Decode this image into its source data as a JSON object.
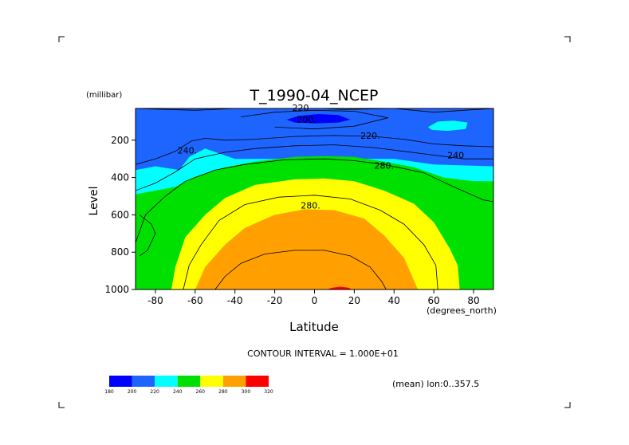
{
  "chart_data": {
    "type": "contour",
    "title": "T_1990-04_NCEP",
    "xlabel": "Latitude",
    "ylabel": "Level",
    "x_units": "(degrees_north)",
    "y_units": "(millibar)",
    "xlim": [
      -90,
      90
    ],
    "ylim": [
      1000,
      30
    ],
    "x_ticks": [
      -80,
      -60,
      -40,
      -20,
      0,
      20,
      40,
      60,
      80
    ],
    "y_ticks": [
      200,
      400,
      600,
      800,
      1000
    ],
    "contour_interval_text": "CONTOUR INTERVAL = 1.000E+01",
    "footer_text": "(mean) lon:0..357.5",
    "colorbar": {
      "levels": [
        "180",
        "200",
        "220",
        "240",
        "260",
        "280",
        "300",
        "320"
      ],
      "colors": [
        "#0000ff",
        "#1e64ff",
        "#00ffff",
        "#00e000",
        "#ffff00",
        "#ffa000",
        "#ff0000"
      ]
    },
    "contour_labels": [
      {
        "text": "220",
        "x": -7,
        "y": 25
      },
      {
        "text": "200.",
        "x": -4,
        "y": 90
      },
      {
        "text": "220.",
        "x": 28,
        "y": 175
      },
      {
        "text": "240.",
        "x": -64,
        "y": 255
      },
      {
        "text": "240",
        "x": 71,
        "y": 280
      },
      {
        "text": "280.",
        "x": 35,
        "y": 335
      },
      {
        "text": "280.",
        "x": -2,
        "y": 550
      }
    ],
    "bands": [
      {
        "threshold": 200,
        "color": "#1e64ff",
        "points": [
          [
            -90,
            30
          ],
          [
            90,
            30
          ],
          [
            90,
            340
          ],
          [
            60,
            330
          ],
          [
            40,
            300
          ],
          [
            20,
            300
          ],
          [
            0,
            300
          ],
          [
            -20,
            300
          ],
          [
            -40,
            300
          ],
          [
            -55,
            245
          ],
          [
            -63,
            290
          ],
          [
            -68,
            360
          ],
          [
            -80,
            340
          ],
          [
            -90,
            360
          ]
        ]
      },
      {
        "threshold": 220,
        "color": "#00ffff",
        "points": [
          [
            -90,
            360
          ],
          [
            -80,
            340
          ],
          [
            -68,
            360
          ],
          [
            -63,
            290
          ],
          [
            -55,
            245
          ],
          [
            -40,
            300
          ],
          [
            -20,
            300
          ],
          [
            0,
            300
          ],
          [
            20,
            300
          ],
          [
            40,
            300
          ],
          [
            60,
            330
          ],
          [
            90,
            340
          ],
          [
            90,
            1000
          ],
          [
            -90,
            1000
          ]
        ]
      },
      {
        "threshold": 240,
        "color": "#00e000",
        "points": [
          [
            -90,
            490
          ],
          [
            -80,
            470
          ],
          [
            -70,
            450
          ],
          [
            -60,
            395
          ],
          [
            -45,
            345
          ],
          [
            -30,
            315
          ],
          [
            -10,
            290
          ],
          [
            5,
            285
          ],
          [
            20,
            290
          ],
          [
            35,
            315
          ],
          [
            50,
            345
          ],
          [
            65,
            400
          ],
          [
            80,
            420
          ],
          [
            90,
            420
          ],
          [
            90,
            1000
          ],
          [
            -90,
            1000
          ]
        ]
      },
      {
        "threshold": 260,
        "color": "#ffff00",
        "points": [
          [
            -72,
            1000
          ],
          [
            -70,
            880
          ],
          [
            -65,
            720
          ],
          [
            -55,
            600
          ],
          [
            -45,
            510
          ],
          [
            -30,
            440
          ],
          [
            -10,
            410
          ],
          [
            5,
            405
          ],
          [
            20,
            420
          ],
          [
            35,
            470
          ],
          [
            50,
            540
          ],
          [
            60,
            640
          ],
          [
            68,
            780
          ],
          [
            72,
            870
          ],
          [
            73,
            1000
          ]
        ]
      },
      {
        "threshold": 280,
        "color": "#ffa000",
        "points": [
          [
            -60,
            1000
          ],
          [
            -55,
            880
          ],
          [
            -45,
            760
          ],
          [
            -35,
            670
          ],
          [
            -20,
            600
          ],
          [
            -5,
            570
          ],
          [
            10,
            575
          ],
          [
            25,
            620
          ],
          [
            35,
            710
          ],
          [
            45,
            830
          ],
          [
            52,
            1000
          ]
        ]
      },
      {
        "threshold": 300,
        "color": "#ff0000",
        "points": [
          [
            6,
            1000
          ],
          [
            9,
            990
          ],
          [
            13,
            985
          ],
          [
            17,
            990
          ],
          [
            19,
            1000
          ]
        ]
      },
      {
        "threshold": 200,
        "color": "#1e64ff",
        "points": [
          [
            50,
            1000
          ],
          [
            50,
            1000
          ]
        ]
      },
      {
        "threshold": 180,
        "color": "#0000ff",
        "points": [
          [
            -14,
            90
          ],
          [
            -8,
            70
          ],
          [
            2,
            60
          ],
          [
            12,
            65
          ],
          [
            18,
            90
          ],
          [
            12,
            105
          ],
          [
            0,
            110
          ],
          [
            -10,
            105
          ]
        ]
      },
      {
        "threshold": 220,
        "color": "#00ffff",
        "points": [
          [
            57,
            130
          ],
          [
            62,
            100
          ],
          [
            70,
            95
          ],
          [
            77,
            105
          ],
          [
            76,
            140
          ],
          [
            67,
            150
          ],
          [
            59,
            145
          ]
        ]
      }
    ],
    "contour_lines": [
      [
        [
          -90,
          30
        ],
        [
          -60,
          40
        ],
        [
          -30,
          25
        ],
        [
          -8,
          25
        ],
        [
          15,
          35
        ],
        [
          40,
          30
        ],
        [
          60,
          50
        ],
        [
          75,
          40
        ],
        [
          90,
          30
        ]
      ],
      [
        [
          -37,
          75
        ],
        [
          -20,
          50
        ],
        [
          0,
          40
        ],
        [
          20,
          45
        ],
        [
          37,
          80
        ],
        [
          20,
          125
        ],
        [
          0,
          140
        ],
        [
          -20,
          130
        ]
      ],
      [
        [
          -90,
          330
        ],
        [
          -80,
          300
        ],
        [
          -70,
          260
        ],
        [
          -62,
          205
        ],
        [
          -55,
          190
        ],
        [
          -45,
          200
        ],
        [
          -30,
          195
        ],
        [
          -10,
          180
        ],
        [
          10,
          175
        ],
        [
          30,
          180
        ],
        [
          45,
          195
        ],
        [
          60,
          220
        ],
        [
          75,
          230
        ],
        [
          90,
          235
        ]
      ],
      [
        [
          -90,
          470
        ],
        [
          -80,
          430
        ],
        [
          -70,
          370
        ],
        [
          -60,
          300
        ],
        [
          -45,
          265
        ],
        [
          -30,
          245
        ],
        [
          -10,
          230
        ],
        [
          10,
          225
        ],
        [
          30,
          240
        ],
        [
          45,
          260
        ],
        [
          60,
          280
        ],
        [
          75,
          300
        ],
        [
          90,
          300
        ]
      ],
      [
        [
          -90,
          750
        ],
        [
          -85,
          600
        ],
        [
          -75,
          500
        ],
        [
          -65,
          420
        ],
        [
          -50,
          360
        ],
        [
          -35,
          330
        ],
        [
          -15,
          305
        ],
        [
          5,
          300
        ],
        [
          20,
          310
        ],
        [
          35,
          330
        ],
        [
          55,
          375
        ],
        [
          70,
          450
        ],
        [
          85,
          520
        ],
        [
          90,
          530
        ]
      ],
      [
        [
          -66,
          1000
        ],
        [
          -63,
          870
        ],
        [
          -57,
          760
        ],
        [
          -48,
          630
        ],
        [
          -35,
          545
        ],
        [
          -18,
          505
        ],
        [
          0,
          495
        ],
        [
          18,
          515
        ],
        [
          33,
          575
        ],
        [
          45,
          650
        ],
        [
          55,
          760
        ],
        [
          61,
          870
        ],
        [
          62,
          1000
        ]
      ],
      [
        [
          -50,
          1000
        ],
        [
          -45,
          930
        ],
        [
          -37,
          860
        ],
        [
          -25,
          810
        ],
        [
          -10,
          790
        ],
        [
          5,
          790
        ],
        [
          18,
          820
        ],
        [
          28,
          880
        ],
        [
          34,
          960
        ],
        [
          36,
          1000
        ]
      ],
      [
        [
          -88,
          600
        ],
        [
          -82,
          650
        ],
        [
          -80,
          700
        ],
        [
          -84,
          790
        ],
        [
          -88,
          820
        ]
      ]
    ]
  }
}
